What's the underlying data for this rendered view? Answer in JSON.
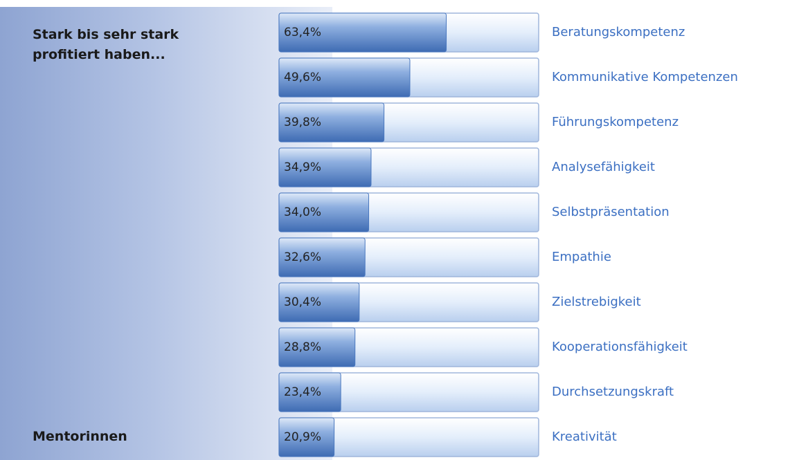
{
  "chart_data": {
    "type": "bar",
    "orientation": "horizontal",
    "title": "Stark bis sehr stark profitiert haben...",
    "subtitle": "Mentorinnen",
    "categories": [
      "Beratungskompetenz",
      "Kommunikative Kompetenzen",
      "Führungskompetenz",
      "Analysefähigkeit",
      "Selbstpräsentation",
      "Empathie",
      "Zielstrebigkeit",
      "Kooperationsfähigkeit",
      "Durchsetzungskraft",
      "Kreativität"
    ],
    "values": [
      63.4,
      49.6,
      39.8,
      34.9,
      34.0,
      32.6,
      30.4,
      28.8,
      23.4,
      20.9
    ],
    "value_labels": [
      "63,4%",
      "49,6%",
      "39,8%",
      "34,9%",
      "34,0%",
      "32,6%",
      "30,4%",
      "28,8%",
      "23,4%",
      "20,9%"
    ],
    "xlim": [
      0,
      100
    ],
    "color": "#4a78bf"
  }
}
